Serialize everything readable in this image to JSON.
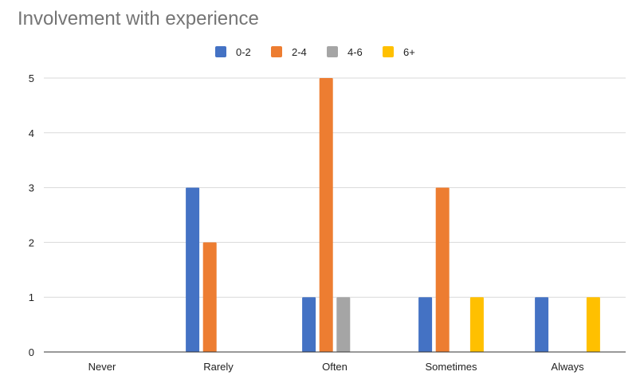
{
  "chart_data": {
    "type": "bar",
    "title": "Involvement with experience",
    "categories": [
      "Never",
      "Rarely",
      "Often",
      "Sometimes",
      "Always"
    ],
    "series": [
      {
        "name": "0-2",
        "color": "#4472c4",
        "values": [
          0,
          3,
          1,
          1,
          1
        ]
      },
      {
        "name": "2-4",
        "color": "#ed7d31",
        "values": [
          0,
          2,
          5,
          3,
          0
        ]
      },
      {
        "name": "4-6",
        "color": "#a5a5a5",
        "values": [
          0,
          0,
          1,
          0,
          0
        ]
      },
      {
        "name": "6+",
        "color": "#ffc000",
        "values": [
          0,
          0,
          0,
          1,
          1
        ]
      }
    ],
    "ylim": [
      0,
      5
    ],
    "yticks": [
      0,
      1,
      2,
      3,
      4,
      5
    ],
    "grid": true,
    "legend_position": "top-center",
    "xlabel": "",
    "ylabel": ""
  }
}
